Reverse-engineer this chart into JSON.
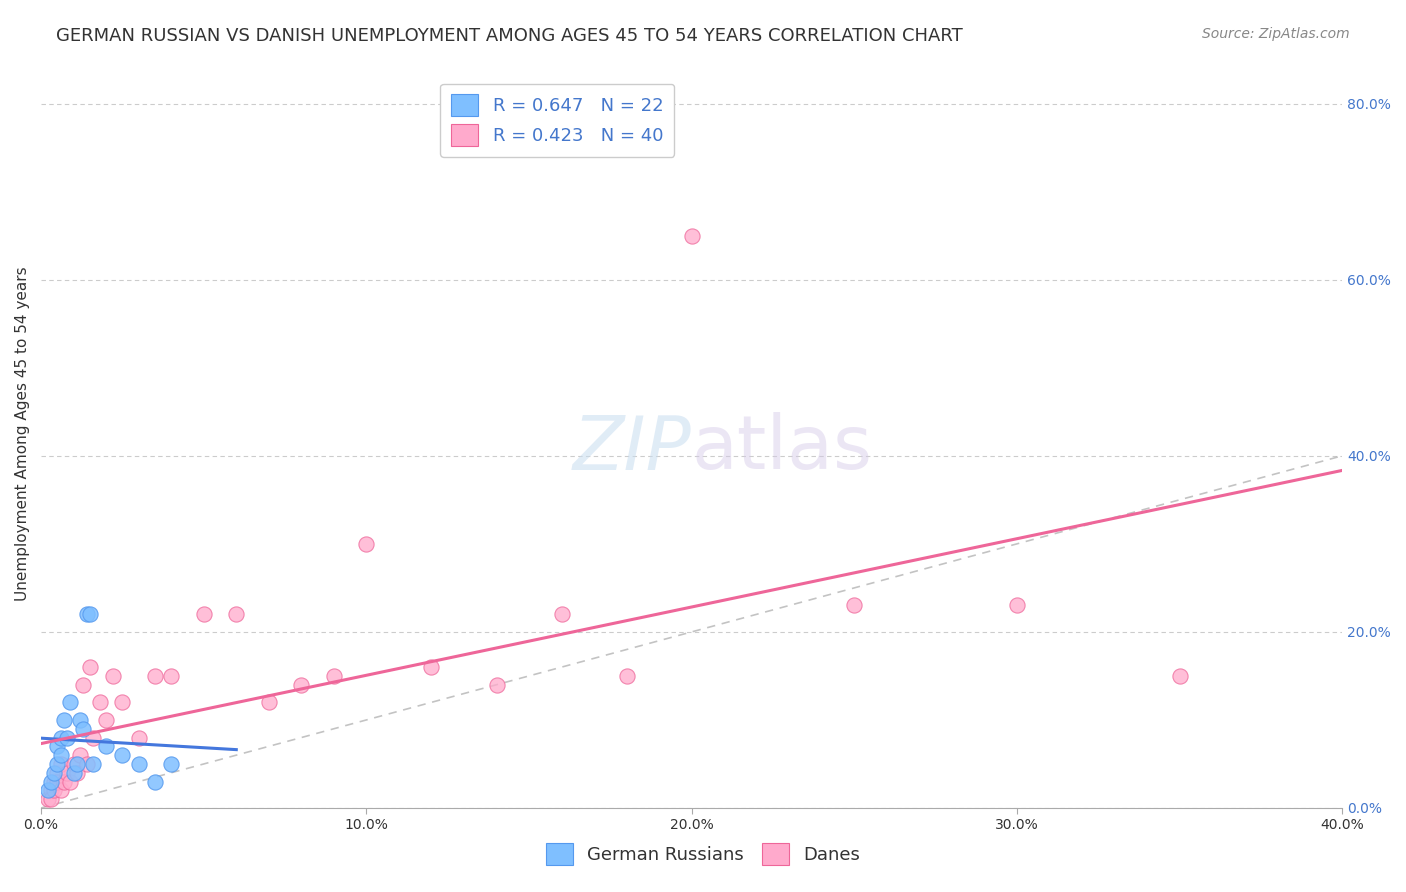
{
  "title": "GERMAN RUSSIAN VS DANISH UNEMPLOYMENT AMONG AGES 45 TO 54 YEARS CORRELATION CHART",
  "source": "Source: ZipAtlas.com",
  "ylabel": "Unemployment Among Ages 45 to 54 years",
  "xlim": [
    0,
    0.4
  ],
  "ylim": [
    0,
    0.85
  ],
  "xticks": [
    0.0,
    0.1,
    0.2,
    0.3,
    0.4
  ],
  "yticks_right": [
    0.0,
    0.2,
    0.4,
    0.6,
    0.8
  ],
  "german_russian_x": [
    0.002,
    0.003,
    0.004,
    0.005,
    0.005,
    0.006,
    0.006,
    0.007,
    0.008,
    0.009,
    0.01,
    0.011,
    0.012,
    0.013,
    0.014,
    0.015,
    0.016,
    0.02,
    0.025,
    0.03,
    0.035,
    0.04
  ],
  "german_russian_y": [
    0.02,
    0.03,
    0.04,
    0.05,
    0.07,
    0.06,
    0.08,
    0.1,
    0.08,
    0.12,
    0.04,
    0.05,
    0.1,
    0.09,
    0.22,
    0.22,
    0.05,
    0.07,
    0.06,
    0.05,
    0.03,
    0.05
  ],
  "danish_x": [
    0.002,
    0.003,
    0.003,
    0.004,
    0.004,
    0.005,
    0.005,
    0.006,
    0.006,
    0.007,
    0.008,
    0.009,
    0.01,
    0.011,
    0.012,
    0.013,
    0.014,
    0.015,
    0.016,
    0.018,
    0.02,
    0.022,
    0.025,
    0.03,
    0.035,
    0.04,
    0.05,
    0.06,
    0.07,
    0.08,
    0.09,
    0.1,
    0.12,
    0.14,
    0.16,
    0.18,
    0.2,
    0.25,
    0.3,
    0.35
  ],
  "danish_y": [
    0.01,
    0.02,
    0.01,
    0.03,
    0.02,
    0.04,
    0.03,
    0.05,
    0.02,
    0.03,
    0.04,
    0.03,
    0.05,
    0.04,
    0.06,
    0.14,
    0.05,
    0.16,
    0.08,
    0.12,
    0.1,
    0.15,
    0.12,
    0.08,
    0.15,
    0.15,
    0.22,
    0.22,
    0.12,
    0.14,
    0.15,
    0.3,
    0.16,
    0.14,
    0.22,
    0.15,
    0.65,
    0.23,
    0.23,
    0.15
  ],
  "gr_R": 0.647,
  "gr_N": 22,
  "danish_R": 0.423,
  "danish_N": 40,
  "blue_color": "#7fbfff",
  "blue_edge": "#5599ee",
  "pink_color": "#ffaacc",
  "pink_edge": "#ee6699",
  "blue_line_color": "#4477dd",
  "pink_line_color": "#ee6699",
  "diag_color": "#aaaaaa",
  "legend_R_color": "#4477cc",
  "title_fontsize": 13,
  "axis_label_fontsize": 11,
  "tick_fontsize": 10,
  "legend_fontsize": 13,
  "source_fontsize": 10
}
